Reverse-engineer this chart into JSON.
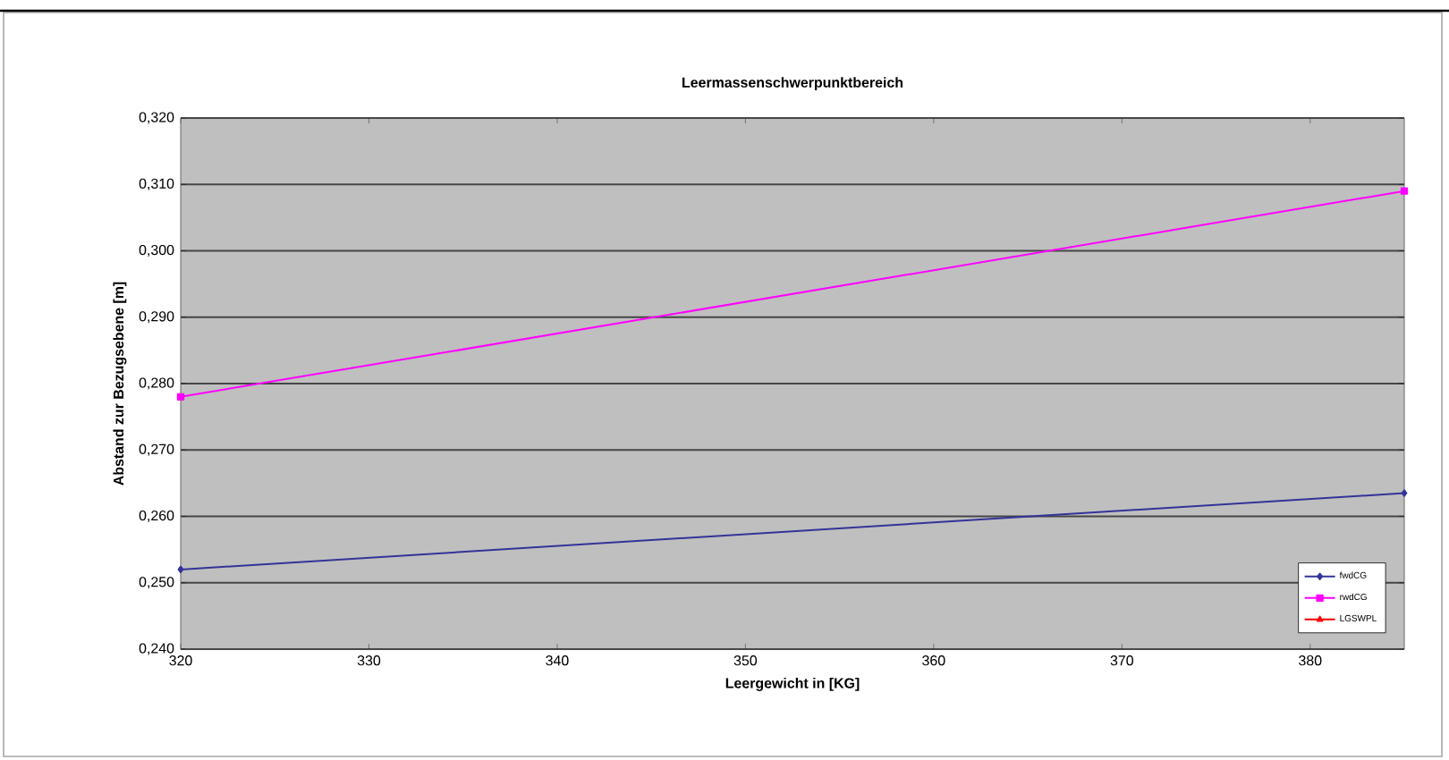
{
  "chart_data": {
    "type": "line",
    "title": "Leermassenschwerpunktbereich",
    "xlabel": "Leergewicht in [KG]",
    "ylabel": "Abstand zur Bezugsebene [m]",
    "x": [
      320,
      385
    ],
    "series": [
      {
        "name": "fwdCG",
        "color": "#333399",
        "marker": "diamond",
        "values": [
          0.252,
          0.2635
        ]
      },
      {
        "name": "rwdCG",
        "color": "#ff00ff",
        "marker": "square",
        "values": [
          0.278,
          0.309
        ]
      },
      {
        "name": "LGSWPL",
        "color": "#ff0000",
        "marker": "triangle",
        "values": [
          null,
          null
        ]
      }
    ],
    "xlim": [
      320,
      385
    ],
    "xticks": [
      320,
      330,
      340,
      350,
      360,
      370,
      380
    ],
    "ylim": [
      0.24,
      0.32
    ],
    "yticks": [
      {
        "value": 0.24,
        "label": "0,240"
      },
      {
        "value": 0.25,
        "label": "0,250"
      },
      {
        "value": 0.26,
        "label": "0,260"
      },
      {
        "value": 0.27,
        "label": "0,270"
      },
      {
        "value": 0.28,
        "label": "0,280"
      },
      {
        "value": 0.29,
        "label": "0,290"
      },
      {
        "value": 0.3,
        "label": "0,300"
      },
      {
        "value": 0.31,
        "label": "0,310"
      },
      {
        "value": 0.32,
        "label": "0,320"
      }
    ],
    "grid": "y",
    "legend": "bottom right"
  }
}
